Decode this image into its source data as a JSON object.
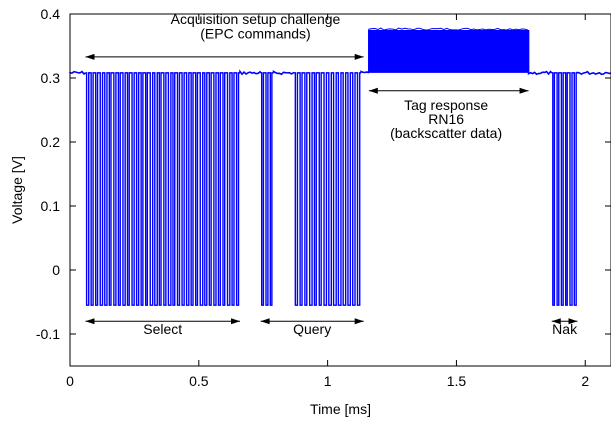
{
  "chart_data": {
    "type": "line",
    "title": "",
    "xlabel": "Time [ms]",
    "ylabel": "Voltage [V]",
    "xlim": [
      0,
      2.1
    ],
    "ylim": [
      -0.15,
      0.4
    ],
    "xticks": [
      0,
      0.5,
      1,
      1.5,
      2
    ],
    "xtick_labels": [
      "0",
      "0.5",
      "1",
      "1.5",
      "2"
    ],
    "yticks": [
      -0.1,
      0,
      0.1,
      0.2,
      0.3,
      0.4
    ],
    "ytick_labels": [
      "-0.1",
      "0",
      "0.1",
      "0.2",
      "0.3",
      "0.4"
    ],
    "grid": false,
    "line_color": "#0000ff",
    "series": [
      {
        "high_level_v": 0.308,
        "low_level_v": -0.055,
        "segments": [
          {
            "x_start": 0.0,
            "x_end": 0.06,
            "kind": "idle"
          },
          {
            "x_start": 0.06,
            "x_end": 0.66,
            "kind": "pulses",
            "pulse_count": 34
          },
          {
            "x_start": 0.66,
            "x_end": 0.74,
            "kind": "idle"
          },
          {
            "x_start": 0.74,
            "x_end": 0.79,
            "kind": "pulses",
            "pulse_count": 3
          },
          {
            "x_start": 0.79,
            "x_end": 0.87,
            "kind": "idle"
          },
          {
            "x_start": 0.87,
            "x_end": 1.13,
            "kind": "pulses",
            "pulse_count": 14
          },
          {
            "x_start": 1.13,
            "x_end": 1.16,
            "kind": "idle"
          },
          {
            "x_start": 1.16,
            "x_end": 1.78,
            "kind": "backscatter",
            "high_v": 0.375
          },
          {
            "x_start": 1.78,
            "x_end": 1.87,
            "kind": "idle"
          },
          {
            "x_start": 1.87,
            "x_end": 1.97,
            "kind": "pulses",
            "pulse_count": 6
          },
          {
            "x_start": 1.97,
            "x_end": 2.1,
            "kind": "idle"
          }
        ]
      }
    ],
    "annotations": [
      {
        "lines": [
          "Acquisition setup challenge",
          "(EPC commands)"
        ],
        "x": 0.72,
        "y_lines": [
          0.384,
          0.362
        ],
        "arrow": {
          "x1": 0.06,
          "x2": 1.14,
          "y": 0.333
        }
      },
      {
        "lines": [
          "Tag response",
          "RN16",
          "(backscatter data)"
        ],
        "x": 1.46,
        "y_lines": [
          0.25,
          0.228,
          0.206
        ],
        "arrow": {
          "x1": 1.16,
          "x2": 1.78,
          "y": 0.28
        }
      },
      {
        "lines": [
          "Select"
        ],
        "x": 0.36,
        "y_lines": [
          -0.1
        ],
        "arrow": {
          "x1": 0.06,
          "x2": 0.66,
          "y": -0.08
        }
      },
      {
        "lines": [
          "Query"
        ],
        "x": 0.94,
        "y_lines": [
          -0.1
        ],
        "arrow": {
          "x1": 0.74,
          "x2": 1.14,
          "y": -0.08
        }
      },
      {
        "lines": [
          "Nak"
        ],
        "x": 1.92,
        "y_lines": [
          -0.1
        ],
        "arrow": {
          "x1": 1.87,
          "x2": 1.97,
          "y": -0.08
        }
      }
    ]
  }
}
